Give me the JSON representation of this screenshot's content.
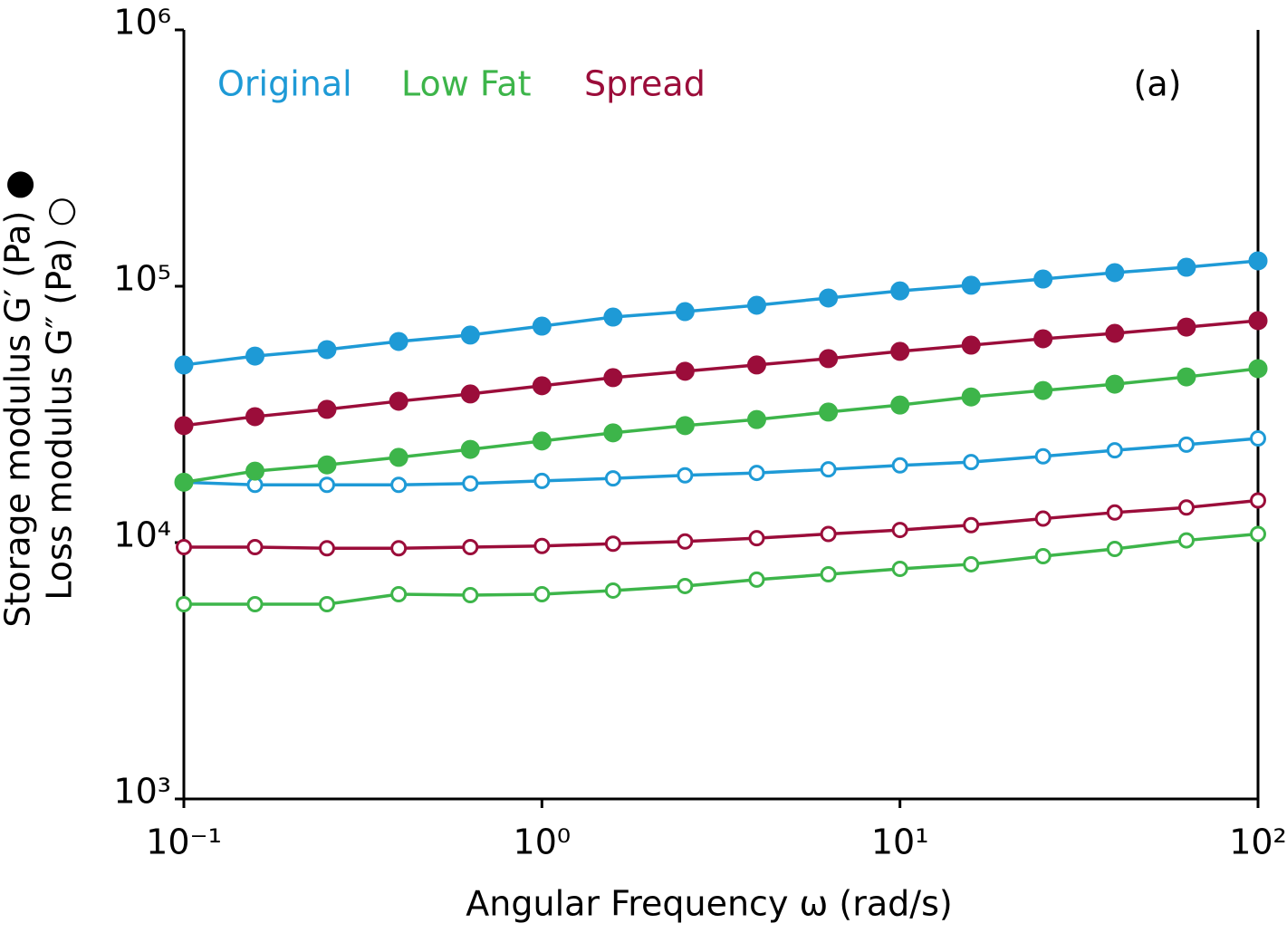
{
  "chart_data": {
    "type": "line",
    "annotation": "(a)",
    "xlabel": "Angular Frequency ω (rad/s)",
    "ylabel": [
      "Storage modulus G′ (Pa) ●",
      "Loss modulus G″ (Pa) ○"
    ],
    "log_x": true,
    "log_y": true,
    "x": [
      0.1,
      0.158,
      0.251,
      0.398,
      0.631,
      1,
      1.58,
      2.51,
      3.98,
      6.31,
      10,
      15.8,
      25.1,
      39.8,
      63.1,
      100
    ],
    "xlim": [
      0.1,
      100
    ],
    "xticks": [
      {
        "value": 0.1,
        "label": "10⁻¹"
      },
      {
        "value": 1,
        "label": "10⁰"
      },
      {
        "value": 10,
        "label": "10¹"
      },
      {
        "value": 100,
        "label": "10²"
      }
    ],
    "ylim": [
      1000,
      1000000
    ],
    "yticks": [
      {
        "value": 1000,
        "label": "10³"
      },
      {
        "value": 10000,
        "label": "10⁴"
      },
      {
        "value": 100000,
        "label": "10⁵"
      },
      {
        "value": 1000000,
        "label": "10⁶"
      }
    ],
    "series": [
      {
        "name": "Original",
        "color": "#1e9ad6",
        "storage_values": [
          49300,
          53400,
          56600,
          60900,
          64500,
          69900,
          75800,
          79600,
          84300,
          90000,
          95900,
          100900,
          106700,
          113000,
          118600,
          125600
        ],
        "loss_values": [
          17200,
          16800,
          16800,
          16800,
          17000,
          17400,
          17800,
          18300,
          18700,
          19300,
          20000,
          20600,
          21700,
          22900,
          24100,
          25500
        ]
      },
      {
        "name": "Low Fat",
        "color": "#3db54a",
        "storage_values": [
          17200,
          19000,
          20100,
          21500,
          23100,
          24900,
          26800,
          28600,
          30200,
          32300,
          34400,
          37000,
          39200,
          41500,
          44300,
          47700
        ],
        "loss_values": [
          5750,
          5750,
          5750,
          6290,
          6240,
          6290,
          6500,
          6770,
          7170,
          7520,
          7900,
          8230,
          8850,
          9450,
          10200,
          10800
        ]
      },
      {
        "name": "Spread",
        "color": "#9b0d3a",
        "storage_values": [
          28600,
          31000,
          33100,
          35600,
          38000,
          40900,
          44000,
          46600,
          49300,
          52200,
          55700,
          58900,
          62400,
          65500,
          69300,
          73400
        ],
        "loss_values": [
          9600,
          9600,
          9500,
          9500,
          9600,
          9700,
          9900,
          10100,
          10400,
          10800,
          11200,
          11700,
          12400,
          13100,
          13700,
          14600
        ]
      }
    ]
  }
}
